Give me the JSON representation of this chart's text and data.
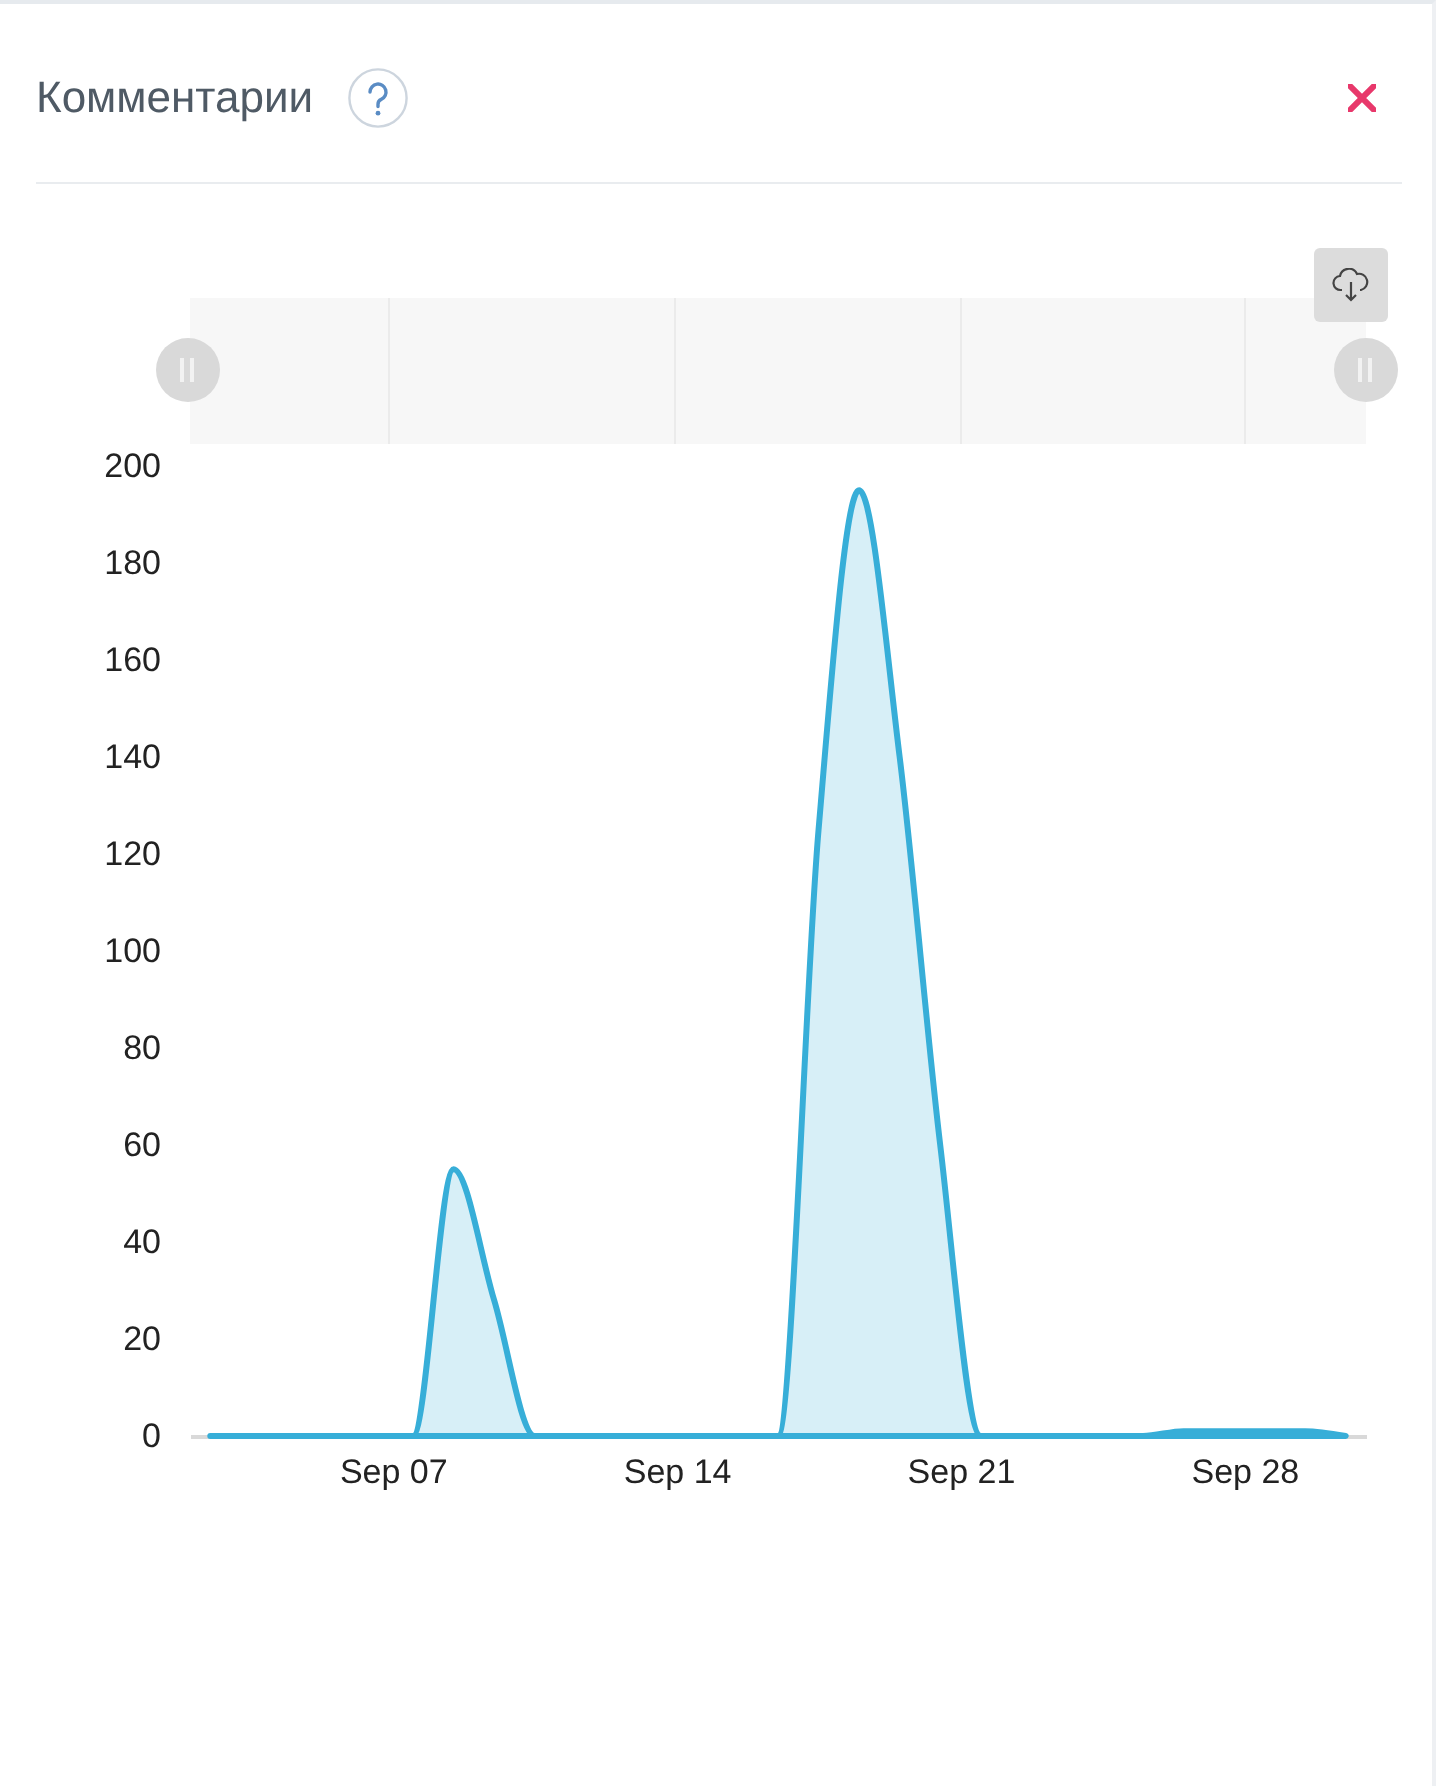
{
  "chart_data": {
    "type": "area",
    "title": "Комментарии",
    "x": [
      "--09-02T12:00",
      "--09-03T12:00",
      "--09-04T12:00",
      "--09-05T12:00",
      "--09-06T12:00",
      "--09-07T12:00",
      "--09-08T12:00",
      "--09-09T12:00",
      "--09-10T12:00",
      "--09-11T12:00",
      "--09-12T12:00",
      "--09-13T12:00",
      "--09-14T12:00",
      "--09-15T12:00",
      "--09-16T12:00",
      "--09-17T12:00",
      "--09-18T12:00",
      "--09-19T12:00",
      "--09-20T12:00",
      "--09-21T12:00",
      "--09-22T12:00",
      "--09-23T12:00",
      "--09-24T12:00",
      "--09-25T12:00",
      "--09-26T12:00",
      "--09-27T12:00",
      "--09-28T12:00",
      "--09-29T12:00",
      "--09-30T12:00"
    ],
    "series": [
      {
        "color": "#37aed8",
        "values": [
          0,
          0,
          0,
          0,
          0,
          0,
          55,
          28,
          0,
          0,
          0,
          0,
          0,
          0,
          0,
          125,
          195,
          140,
          60,
          0,
          0,
          0,
          0,
          0,
          1,
          1,
          1,
          1,
          0
        ]
      }
    ],
    "xlim": [
      "--09-02",
      "--10-01"
    ],
    "xticks": [
      {
        "value": "--09-07",
        "label": "Sep 07"
      },
      {
        "value": "--09-14",
        "label": "Sep 14"
      },
      {
        "value": "--09-21",
        "label": "Sep 21"
      },
      {
        "value": "--09-28",
        "label": "Sep 28"
      }
    ],
    "ylim": [
      0,
      200
    ],
    "yticks": [
      0,
      20,
      40,
      60,
      80,
      100,
      120,
      140,
      160,
      180,
      200
    ]
  }
}
